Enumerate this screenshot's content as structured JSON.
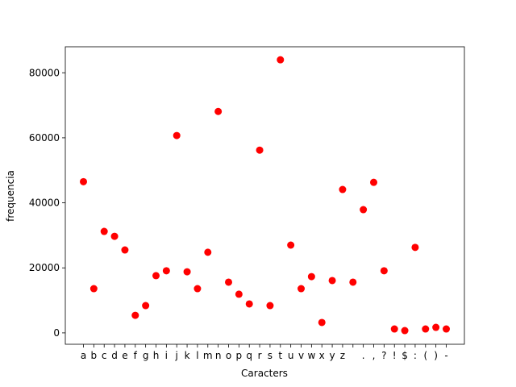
{
  "chart_data": {
    "type": "scatter",
    "x_label": "Caracters",
    "y_label": "frequencia",
    "categories": [
      "a",
      "b",
      "c",
      "d",
      "e",
      "f",
      "g",
      "h",
      "i",
      "j",
      "k",
      "l",
      "m",
      "n",
      "o",
      "p",
      "q",
      "r",
      "s",
      "t",
      "u",
      "v",
      "w",
      "x",
      "y",
      "z",
      null,
      ".",
      ",",
      "?",
      "!",
      "$",
      ":",
      "(",
      ")",
      "-"
    ],
    "values": [
      46500,
      13600,
      31200,
      29700,
      25500,
      5400,
      8400,
      17600,
      19100,
      60700,
      18800,
      13600,
      24800,
      68100,
      15600,
      11900,
      8900,
      56200,
      8400,
      84000,
      27000,
      13600,
      17300,
      3200,
      16100,
      44100,
      15600,
      37900,
      46300,
      19100,
      1200,
      700,
      26300,
      1200,
      1700,
      1200
    ],
    "color": "#ff0000",
    "ylim": [
      -3500,
      88000
    ],
    "yticks": [
      0,
      20000,
      40000,
      60000,
      80000
    ]
  }
}
